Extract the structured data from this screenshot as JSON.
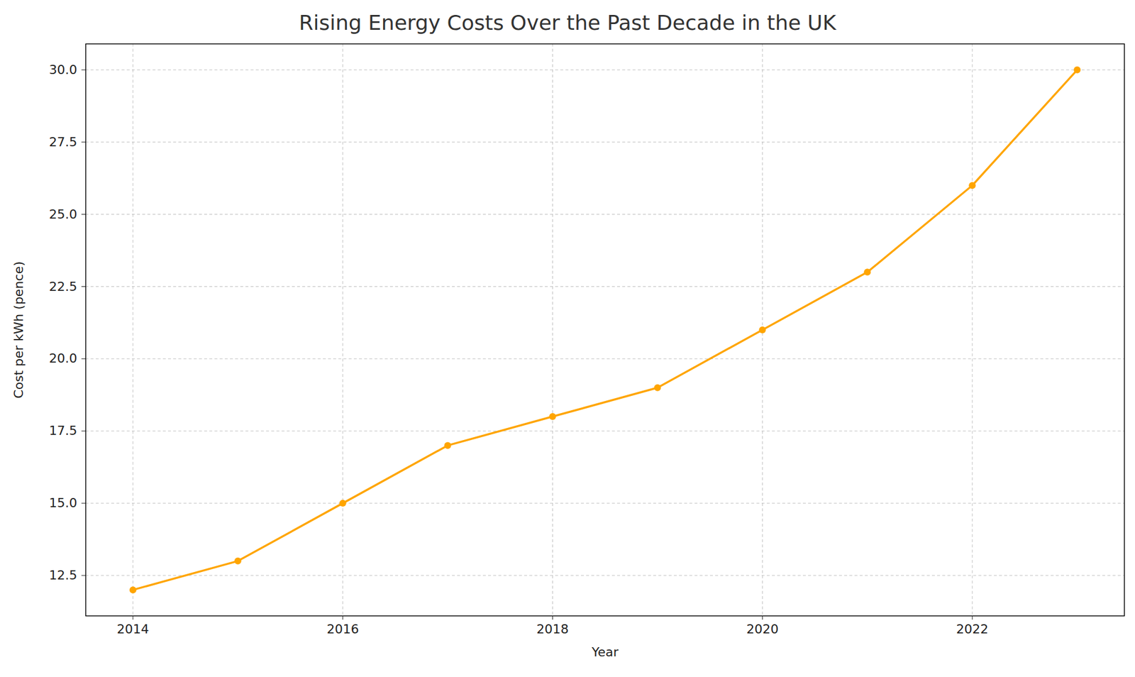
{
  "chart_data": {
    "type": "line",
    "title": "Rising Energy Costs Over the Past Decade in the UK",
    "x_label": "Year",
    "y_label": "Cost per kWh (pence)",
    "x": [
      2014,
      2015,
      2016,
      2017,
      2018,
      2019,
      2020,
      2021,
      2022,
      2023
    ],
    "series": [
      {
        "name": "Cost per kWh",
        "color": "#ffa500",
        "marker": "o",
        "line_style": "solid",
        "values": [
          12,
          13,
          15,
          17,
          18,
          19,
          21,
          23,
          26,
          30
        ]
      }
    ],
    "xlim": [
      2013.55,
      2023.45
    ],
    "xticks": [
      2014,
      2016,
      2018,
      2020,
      2022
    ],
    "ylim": [
      11.1,
      30.9
    ],
    "yticks": [
      {
        "value": 12.5,
        "label": "12.5"
      },
      {
        "value": 15,
        "label": "15.0"
      },
      {
        "value": 17.5,
        "label": "17.5"
      },
      {
        "value": 20,
        "label": "20.0"
      },
      {
        "value": 22.5,
        "label": "22.5"
      },
      {
        "value": 25,
        "label": "25.0"
      },
      {
        "value": 27.5,
        "label": "27.5"
      },
      {
        "value": 30,
        "label": "30.0"
      }
    ],
    "grid": true
  }
}
